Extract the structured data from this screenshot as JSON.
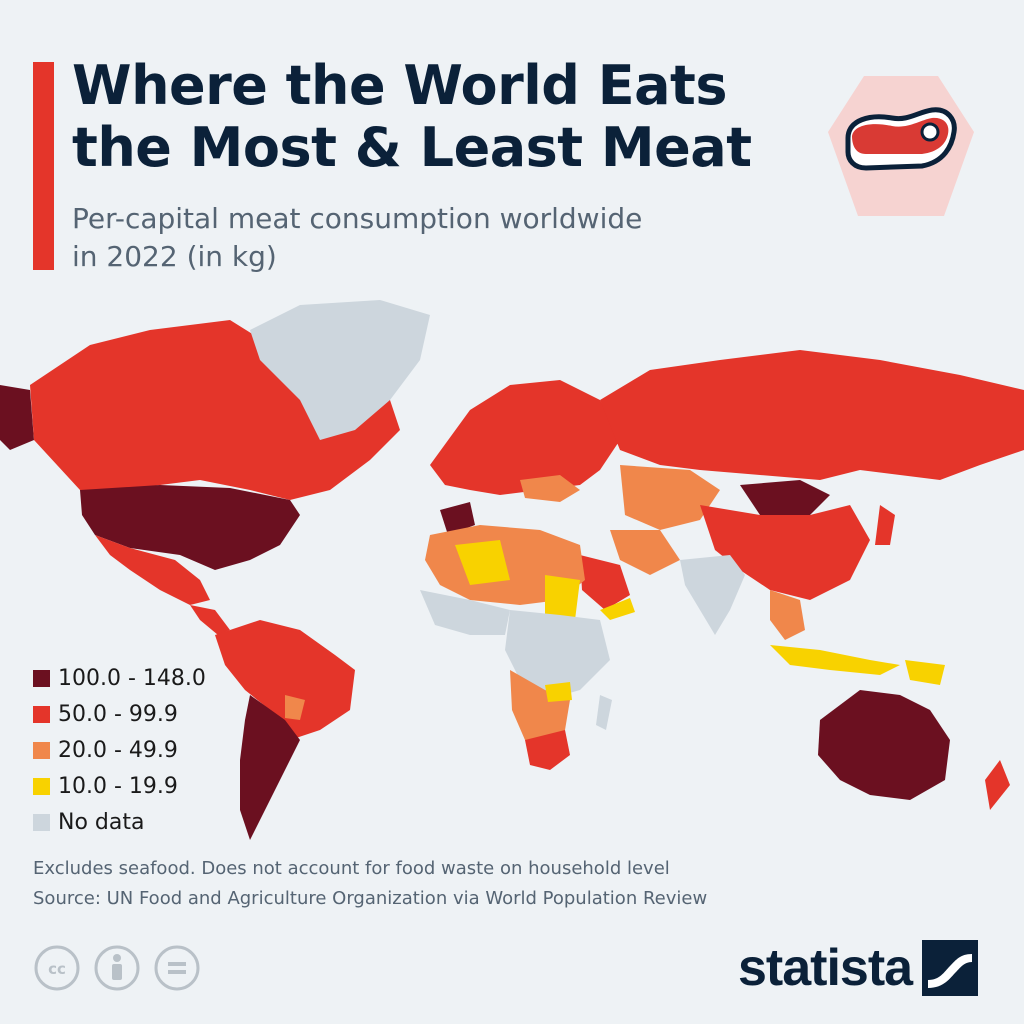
{
  "header": {
    "title_line1": "Where the World Eats",
    "title_line2": "the Most & Least Meat",
    "subtitle_line1": "Per-capital meat consumption worldwide",
    "subtitle_line2": "in 2022 (in kg)",
    "icon": "steak-icon"
  },
  "colors": {
    "accent": "#e4352a",
    "title": "#0b2139",
    "bin_100_148": "#6b1020",
    "bin_50_99": "#e4352a",
    "bin_20_49": "#f0874b",
    "bin_10_19": "#f8d200",
    "no_data": "#cdd6dd"
  },
  "legend": [
    {
      "label": "100.0 - 148.0",
      "color": "#6b1020"
    },
    {
      "label": "50.0 - 99.9",
      "color": "#e4352a"
    },
    {
      "label": "20.0 - 49.9",
      "color": "#f0874b"
    },
    {
      "label": "10.0 - 19.9",
      "color": "#f8d200"
    },
    {
      "label": "No data",
      "color": "#cdd6dd"
    }
  ],
  "map_regions": [
    {
      "region": "United States",
      "category": "100.0 - 148.0"
    },
    {
      "region": "Argentina",
      "category": "100.0 - 148.0"
    },
    {
      "region": "Australia",
      "category": "100.0 - 148.0"
    },
    {
      "region": "Mongolia",
      "category": "100.0 - 148.0"
    },
    {
      "region": "Spain",
      "category": "100.0 - 148.0"
    },
    {
      "region": "Canada",
      "category": "50.0 - 99.9"
    },
    {
      "region": "Russia",
      "category": "50.0 - 99.9"
    },
    {
      "region": "China",
      "category": "50.0 - 99.9"
    },
    {
      "region": "Brazil",
      "category": "50.0 - 99.9"
    },
    {
      "region": "Mexico",
      "category": "50.0 - 99.9"
    },
    {
      "region": "South Africa",
      "category": "50.0 - 99.9"
    },
    {
      "region": "Saudi Arabia",
      "category": "50.0 - 99.9"
    },
    {
      "region": "Europe",
      "category": "50.0 - 99.9"
    },
    {
      "region": "New Zealand",
      "category": "50.0 - 99.9"
    },
    {
      "region": "Japan",
      "category": "50.0 - 99.9"
    },
    {
      "region": "Central Asia",
      "category": "20.0 - 49.9"
    },
    {
      "region": "Iran",
      "category": "20.0 - 49.9"
    },
    {
      "region": "Egypt",
      "category": "20.0 - 49.9"
    },
    {
      "region": "Southern Africa",
      "category": "20.0 - 49.9"
    },
    {
      "region": "West Africa",
      "category": "20.0 - 49.9"
    },
    {
      "region": "Algeria",
      "category": "10.0 - 19.9"
    },
    {
      "region": "Sudan",
      "category": "10.0 - 19.9"
    },
    {
      "region": "Indonesia",
      "category": "10.0 - 19.9"
    },
    {
      "region": "Papua New Guinea",
      "category": "10.0 - 19.9"
    },
    {
      "region": "Yemen",
      "category": "10.0 - 19.9"
    },
    {
      "region": "Greenland",
      "category": "No data"
    },
    {
      "region": "India",
      "category": "No data"
    },
    {
      "region": "Central Africa",
      "category": "No data"
    }
  ],
  "notes": {
    "note": "Excludes seafood. Does not account for food waste on household level",
    "source": "Source: UN Food and Agriculture Organization via World Population Review"
  },
  "licenses": [
    "cc-icon",
    "attribution-icon",
    "no-derivatives-icon"
  ],
  "brand": {
    "name": "statista",
    "icon": "statista-logo-icon"
  }
}
